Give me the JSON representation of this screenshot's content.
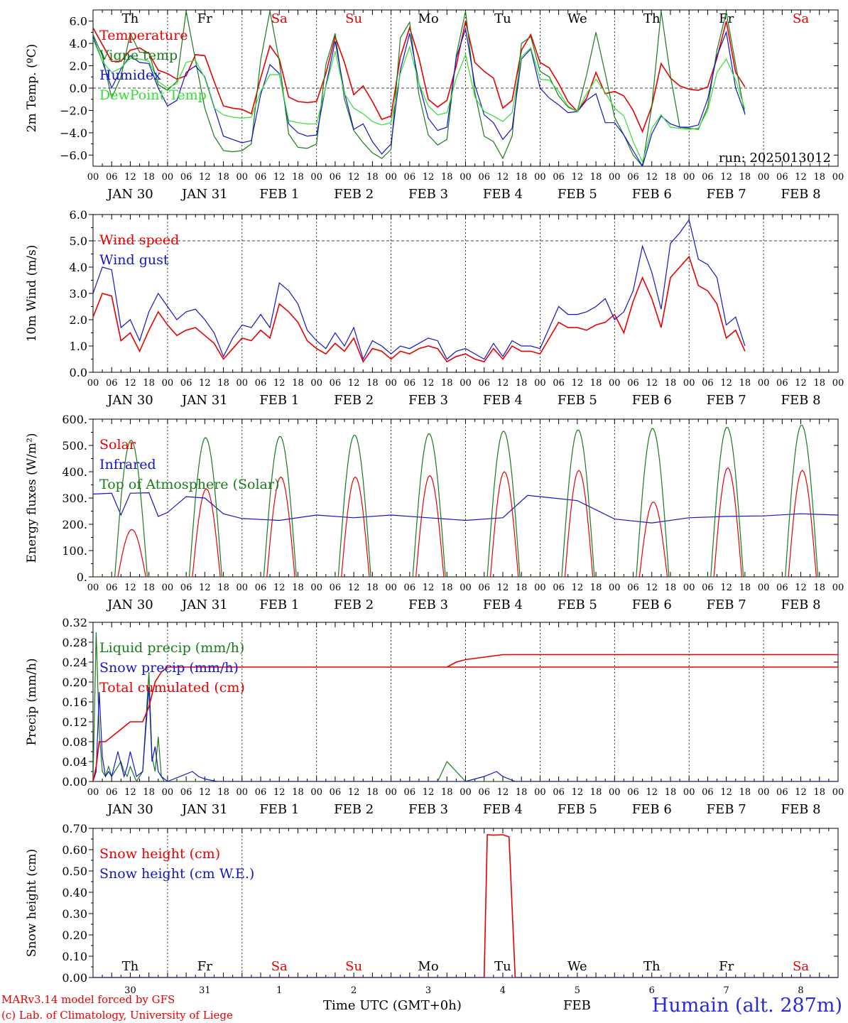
{
  "days": [
    "Th",
    "Fr",
    "Sa",
    "Su",
    "Mo",
    "Tu",
    "We",
    "Th",
    "Fr",
    "Sa"
  ],
  "weekend_days": [
    "Sa",
    "Su"
  ],
  "hour_ticks": [
    "00",
    "06",
    "12",
    "18"
  ],
  "date_labels": [
    "JAN 30",
    "JAN 31",
    "FEB  1",
    "FEB  2",
    "FEB  3",
    "FEB  4",
    "FEB  5",
    "FEB  6",
    "FEB  7",
    "FEB  8"
  ],
  "bottom_day_numbers": [
    "30",
    "31",
    "1",
    "2",
    "3",
    "4",
    "5",
    "6",
    "7",
    "8"
  ],
  "footer": {
    "credit_line1": "MARv3.14 model forced by GFS",
    "credit_line2": "(c) Lab. of Climatology, University of Liege",
    "time_label": "Time UTC (GMT+0h)",
    "month_label": "FEB",
    "station": "Humain (alt. 287m)"
  },
  "colors": {
    "red": "#e60000",
    "green": "#1a7a1a",
    "blue": "#1414c8",
    "lightgreen": "#33dd33"
  },
  "chart_data": [
    {
      "type": "line",
      "ylabel": "2m Temp. (ºC)",
      "ylim": [
        -7,
        7
      ],
      "yticks": [
        -6,
        -4,
        -2,
        0,
        2,
        4,
        6
      ],
      "ytick_labels": [
        "−6.0",
        "−4.0",
        "−2.0",
        "0.0",
        "2.0",
        "4.0",
        "6.0"
      ],
      "run_label": "run: 2025013012",
      "show_days": true,
      "dashed_zero": 0,
      "x_hours": [
        0,
        3,
        6,
        9,
        12,
        15,
        18,
        21,
        24,
        27,
        30,
        33,
        36,
        39,
        42,
        45,
        48,
        51,
        54,
        57,
        60,
        63,
        66,
        69,
        72,
        75,
        78,
        81,
        84,
        87,
        90,
        93,
        96,
        99,
        102,
        105,
        108,
        111,
        114,
        117,
        120,
        123,
        126,
        129,
        132,
        135,
        138,
        141,
        144,
        147,
        150,
        153,
        156,
        159,
        162,
        165,
        168,
        171,
        174,
        177,
        180,
        183,
        186,
        189,
        192,
        195,
        198,
        201,
        204,
        207,
        210,
        213,
        216,
        219,
        222,
        225,
        228,
        231,
        234,
        237,
        240
      ],
      "series": [
        {
          "name": "Temperature",
          "color": "red",
          "values": [
            5.4,
            3.9,
            2.4,
            2.4,
            3.4,
            3.6,
            3.1,
            1.6,
            1.3,
            0.8,
            1.1,
            3.0,
            2.9,
            0.6,
            -1.6,
            -1.8,
            -1.9,
            -2.3,
            0.9,
            3.8,
            2.6,
            -0.8,
            -1.2,
            -1.3,
            -1.2,
            1.3,
            4.6,
            2.3,
            -0.6,
            0.2,
            -1.2,
            -2.8,
            -2.5,
            2.8,
            5.4,
            2.7,
            -1.0,
            -1.7,
            -1.1,
            2.0,
            6.0,
            2.3,
            1.5,
            0.9,
            -1.8,
            -1.1,
            3.4,
            4.8,
            2.3,
            1.8,
            0.4,
            -1.2,
            -2.1,
            -0.9,
            1.4,
            -0.5,
            -0.3,
            -0.7,
            -2.0,
            -3.9,
            -1.6,
            2.2,
            0.9,
            0.2,
            -0.1,
            -0.2,
            0.1,
            2.7,
            6.0,
            1.4,
            0.1
          ]
        },
        {
          "name": "Vigne temp",
          "color": "green",
          "values": [
            4.8,
            2.9,
            -0.9,
            1.0,
            4.9,
            3.2,
            3.2,
            0.3,
            -0.2,
            0.6,
            6.9,
            2.5,
            -1.8,
            -4.3,
            -5.6,
            -5.7,
            -5.6,
            -5.0,
            2.5,
            6.9,
            2.4,
            -4.1,
            -5.3,
            -5.4,
            -5.0,
            2.1,
            4.9,
            -1.0,
            -3.8,
            -4.9,
            -5.8,
            -6.3,
            -5.5,
            4.5,
            5.9,
            -0.6,
            -4.2,
            -5.1,
            -4.6,
            2.9,
            6.9,
            -0.4,
            -4.3,
            -4.8,
            -6.3,
            -4.3,
            4.0,
            4.6,
            1.5,
            1.0,
            -0.7,
            -1.7,
            -2.1,
            1.2,
            5.0,
            1.3,
            -2.6,
            -4.2,
            -6.0,
            -7.0,
            -1.6,
            6.9,
            1.1,
            -3.5,
            -3.6,
            -3.7,
            -1.7,
            3.4,
            6.8,
            2.1,
            -2.4
          ]
        },
        {
          "name": "Humidex",
          "color": "blue",
          "values": [
            4.6,
            2.4,
            0.0,
            1.7,
            2.9,
            2.3,
            2.2,
            0.0,
            -1.6,
            -1.1,
            1.4,
            2.0,
            1.0,
            -1.7,
            -4.3,
            -4.6,
            -4.9,
            -4.7,
            -0.6,
            2.1,
            1.3,
            -3.2,
            -4.0,
            -4.3,
            -4.2,
            0.2,
            4.2,
            -0.4,
            -3.7,
            -3.2,
            -4.8,
            -5.9,
            -5.0,
            1.6,
            4.9,
            0.4,
            -2.7,
            -3.8,
            -3.5,
            2.7,
            5.3,
            0.3,
            -2.4,
            -3.1,
            -4.6,
            -3.6,
            2.6,
            3.5,
            0.0,
            -0.9,
            -1.5,
            -2.2,
            -2.1,
            -1.1,
            -0.5,
            -3.1,
            -3.1,
            -4.2,
            -5.6,
            -7.0,
            -4.1,
            -2.5,
            -3.2,
            -3.5,
            -3.5,
            -3.3,
            -1.0,
            2.9,
            5.0,
            0.0,
            -2.3
          ]
        },
        {
          "name": "DewPoint Temp",
          "color": "lightgreen",
          "values": [
            4.4,
            2.4,
            1.4,
            1.8,
            2.7,
            2.6,
            2.4,
            0.6,
            0.0,
            0.4,
            2.3,
            2.5,
            0.9,
            -1.8,
            -2.4,
            -2.6,
            -2.7,
            -2.6,
            -0.3,
            1.2,
            1.2,
            -2.9,
            -3.1,
            -3.2,
            -3.2,
            0.1,
            3.3,
            -0.5,
            -1.8,
            -2.3,
            -3.0,
            -3.3,
            -3.1,
            1.3,
            3.7,
            0.4,
            -1.6,
            -2.4,
            -2.2,
            0.9,
            3.0,
            -0.8,
            -2.1,
            -2.5,
            -3.0,
            -2.2,
            2.8,
            3.6,
            0.8,
            0.7,
            -0.3,
            -1.6,
            -2.1,
            -0.5,
            0.8,
            -0.4,
            -1.8,
            -2.5,
            -4.8,
            -6.6,
            -3.6,
            -2.4,
            -3.5,
            -3.6,
            -3.7,
            -3.6,
            -2.0,
            1.4,
            2.6,
            0.7,
            -1.9
          ]
        }
      ]
    },
    {
      "type": "line",
      "ylabel": "10m Wind (m/s)",
      "ylim": [
        0,
        6
      ],
      "yticks": [
        0,
        1,
        2,
        3,
        4,
        5,
        6
      ],
      "ytick_labels": [
        "0.0",
        "1.0",
        "2.0",
        "3.0",
        "4.0",
        "5.0",
        "6.0"
      ],
      "show_days": false,
      "dashed_value": 5,
      "x_hours": [
        0,
        3,
        6,
        9,
        12,
        15,
        18,
        21,
        24,
        27,
        30,
        33,
        36,
        39,
        42,
        45,
        48,
        51,
        54,
        57,
        60,
        63,
        66,
        69,
        72,
        75,
        78,
        81,
        84,
        87,
        90,
        93,
        96,
        99,
        102,
        105,
        108,
        111,
        114,
        117,
        120,
        123,
        126,
        129,
        132,
        135,
        138,
        141,
        144,
        147,
        150,
        153,
        156,
        159,
        162,
        165,
        168,
        171,
        174,
        177,
        180,
        183,
        186,
        189,
        192,
        195,
        198,
        201,
        204,
        207,
        210,
        213,
        216,
        219,
        222,
        225,
        228,
        231,
        234,
        237,
        240
      ],
      "series": [
        {
          "name": "Wind speed",
          "color": "red",
          "values": [
            2.1,
            3.0,
            2.9,
            1.2,
            1.5,
            0.8,
            1.6,
            2.3,
            1.8,
            1.4,
            1.6,
            1.7,
            1.4,
            1.1,
            0.5,
            0.9,
            1.3,
            1.2,
            1.6,
            1.3,
            2.6,
            2.3,
            1.9,
            1.2,
            0.9,
            0.7,
            1.1,
            0.8,
            1.3,
            0.4,
            0.9,
            0.8,
            0.5,
            0.8,
            0.7,
            0.9,
            1.0,
            0.9,
            0.4,
            0.6,
            0.7,
            0.5,
            0.4,
            0.9,
            0.5,
            1.0,
            0.8,
            0.8,
            0.7,
            1.3,
            1.9,
            1.7,
            1.7,
            1.6,
            1.8,
            1.9,
            2.2,
            1.5,
            2.7,
            3.6,
            2.8,
            1.7,
            3.6,
            4.0,
            4.4,
            3.3,
            3.1,
            2.6,
            1.3,
            1.6,
            0.8
          ]
        },
        {
          "name": "Wind gust",
          "color": "blue",
          "values": [
            3.0,
            4.0,
            3.9,
            1.7,
            2.0,
            1.2,
            2.3,
            3.0,
            2.5,
            2.0,
            2.3,
            2.4,
            2.0,
            1.5,
            0.6,
            1.3,
            1.8,
            1.7,
            2.2,
            1.7,
            3.4,
            3.1,
            2.6,
            1.6,
            1.2,
            0.9,
            1.5,
            1.0,
            1.7,
            0.5,
            1.2,
            1.0,
            0.7,
            1.0,
            0.9,
            1.1,
            1.3,
            1.2,
            0.5,
            0.8,
            0.9,
            0.7,
            0.5,
            1.1,
            0.6,
            1.2,
            1.0,
            1.0,
            0.9,
            1.7,
            2.5,
            2.2,
            2.2,
            2.3,
            2.5,
            2.8,
            2.0,
            2.3,
            3.1,
            4.8,
            3.8,
            2.4,
            4.9,
            5.3,
            5.8,
            4.3,
            4.1,
            3.6,
            1.8,
            2.1,
            1.0
          ]
        }
      ]
    },
    {
      "type": "line",
      "ylabel": "Energy fluxes (W/m²)",
      "ylim": [
        0,
        600
      ],
      "yticks": [
        0,
        100,
        200,
        300,
        400,
        500,
        600
      ],
      "ytick_labels": [
        "0.",
        "100.",
        "200.",
        "300.",
        "400.",
        "500.",
        "600."
      ],
      "show_days": false,
      "series": [
        {
          "name": "Solar",
          "color": "red",
          "daily_peaks": [
            180,
            335,
            380,
            380,
            385,
            400,
            405,
            285,
            415,
            405
          ]
        },
        {
          "name": "Infrared",
          "color": "blue",
          "x_hours": [
            0,
            6,
            9,
            12,
            18,
            21,
            24,
            30,
            36,
            42,
            48,
            60,
            72,
            84,
            96,
            108,
            120,
            132,
            140,
            144,
            156,
            168,
            180,
            192,
            204,
            216,
            228,
            240
          ],
          "values": [
            315,
            318,
            235,
            318,
            320,
            230,
            245,
            305,
            300,
            240,
            222,
            215,
            235,
            225,
            235,
            225,
            215,
            225,
            310,
            305,
            290,
            220,
            205,
            225,
            230,
            232,
            240,
            235
          ]
        },
        {
          "name": "Top of Atmosphere (Solar)",
          "color": "green",
          "daily_peaks": [
            520,
            530,
            535,
            540,
            545,
            555,
            560,
            565,
            570,
            578
          ]
        }
      ]
    },
    {
      "type": "line",
      "ylabel": "Precip (mm/h)",
      "ylim": [
        0,
        0.32
      ],
      "yticks": [
        0,
        0.04,
        0.08,
        0.12,
        0.16,
        0.2,
        0.24,
        0.28,
        0.32
      ],
      "ytick_labels": [
        "0.00",
        "0.04",
        "0.08",
        "0.12",
        "0.16",
        "0.20",
        "0.24",
        "0.28",
        "0.32"
      ],
      "show_days": false,
      "series": [
        {
          "name": "Liquid precip (mm/h)",
          "color": "green",
          "x_hours": [
            0,
            1,
            2,
            3,
            4,
            5,
            6,
            8,
            9,
            10,
            11,
            12,
            14,
            16,
            18,
            19,
            20,
            21,
            22,
            23,
            24,
            30,
            111,
            114,
            117,
            120,
            144,
            240
          ],
          "values": [
            0,
            0.3,
            0.1,
            0.02,
            0.01,
            0.03,
            0.01,
            0.03,
            0.04,
            0.02,
            0.01,
            0.03,
            0,
            0.02,
            0.22,
            0.05,
            0.02,
            0.09,
            0.01,
            0,
            0,
            0,
            0,
            0.04,
            0.02,
            0,
            0,
            0
          ]
        },
        {
          "name": "Snow precip (mm/h)",
          "color": "blue",
          "x_hours": [
            0,
            1,
            2,
            3,
            4,
            5,
            6,
            8,
            10,
            11,
            12,
            14,
            16,
            18,
            19,
            20,
            21,
            22,
            24,
            28,
            32,
            34,
            36,
            40,
            120,
            126,
            130,
            132,
            136,
            240
          ],
          "values": [
            0,
            0.02,
            0.18,
            0.05,
            0.01,
            0.02,
            0.01,
            0.06,
            0.01,
            0.03,
            0.06,
            0.01,
            0.02,
            0.19,
            0.04,
            0.07,
            0.02,
            0.01,
            0,
            0.01,
            0.02,
            0.01,
            0.005,
            0,
            0,
            0.01,
            0.02,
            0.01,
            0,
            0
          ]
        },
        {
          "name": "Total cumulated (cm)",
          "color": "red",
          "x_hours": [
            0,
            1,
            2,
            4,
            8,
            12,
            16,
            18,
            20,
            22,
            24,
            240
          ],
          "values": [
            0,
            0.03,
            0.08,
            0.08,
            0.1,
            0.12,
            0.12,
            0.15,
            0.2,
            0.22,
            0.23,
            0.23
          ],
          "late_rise": {
            "x_hours": [
              114,
              117,
              120,
              126,
              132,
              240
            ],
            "values": [
              0.23,
              0.24,
              0.245,
              0.25,
              0.255,
              0.255
            ]
          }
        }
      ]
    },
    {
      "type": "area",
      "ylabel": "Snow height (cm)",
      "ylim": [
        0,
        0.7
      ],
      "yticks": [
        0,
        0.1,
        0.2,
        0.3,
        0.4,
        0.5,
        0.6,
        0.7
      ],
      "ytick_labels": [
        "0.00",
        "0.10",
        "0.20",
        "0.30",
        "0.40",
        "0.50",
        "0.60",
        "0.70"
      ],
      "show_days": "bottom",
      "series": [
        {
          "name": "Snow height (cm)",
          "color": "red",
          "x_hours": [
            0,
            126,
            127,
            129,
            132,
            134,
            136,
            240
          ],
          "values": [
            0,
            0,
            0.67,
            0.668,
            0.67,
            0.66,
            0,
            0
          ]
        },
        {
          "name": "Snow height (cm W.E.)",
          "color": "blue",
          "x_hours": [
            0,
            240
          ],
          "values": [
            0,
            0
          ]
        }
      ]
    }
  ]
}
